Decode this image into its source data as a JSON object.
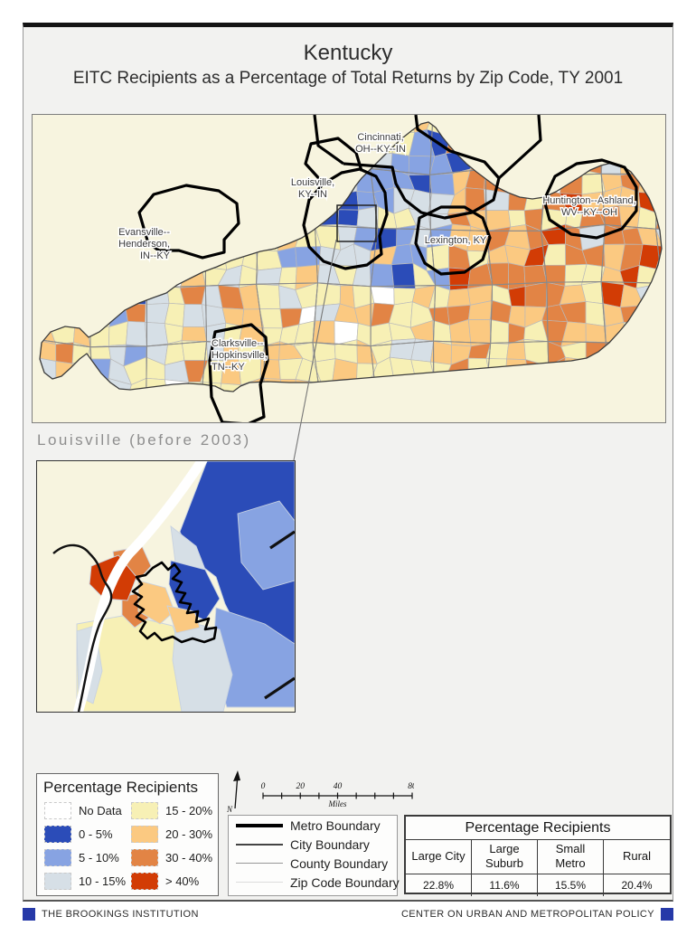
{
  "page": {
    "title": "Kentucky",
    "subtitle": "EITC Recipients as a Percentage of Total Returns by Zip Code, TY 2001"
  },
  "map": {
    "labels": [
      {
        "id": "cincinnati",
        "lines": [
          "Cincinnati,",
          "OH--KY--IN"
        ]
      },
      {
        "id": "louisville",
        "lines": [
          "Louisville,",
          "KY--IN"
        ]
      },
      {
        "id": "evansville",
        "lines": [
          "Evansville--",
          "Henderson,",
          "IN--KY"
        ]
      },
      {
        "id": "lexington",
        "lines": [
          "Lexington, KY"
        ]
      },
      {
        "id": "huntington",
        "lines": [
          "Huntington--Ashland,",
          "WV--KY--OH"
        ]
      },
      {
        "id": "clarksville",
        "lines": [
          "Clarksville--",
          "Hopkinsville,",
          "TN--KY"
        ]
      }
    ]
  },
  "inset": {
    "title": "Louisville (before 2003)"
  },
  "legend": {
    "title": "Percentage Recipients",
    "classes": [
      {
        "key": "nodata",
        "label": "No Data",
        "color": "#ffffff"
      },
      {
        "key": "db",
        "label": "0 - 5%",
        "color": "#2b4cb8"
      },
      {
        "key": "mb",
        "label": "5 - 10%",
        "color": "#87a3e2"
      },
      {
        "key": "lb",
        "label": "10 - 15%",
        "color": "#d6dfe6"
      },
      {
        "key": "py",
        "label": "15 - 20%",
        "color": "#f7f0b5"
      },
      {
        "key": "lo",
        "label": "20 - 30%",
        "color": "#fbc981"
      },
      {
        "key": "mo",
        "label": "30 - 40%",
        "color": "#e28445"
      },
      {
        "key": "rd",
        "label": "> 40%",
        "color": "#d23c05"
      }
    ]
  },
  "scalebar": {
    "ticks": [
      "0",
      "20",
      "40",
      "80"
    ],
    "unit": "Miles",
    "north": "N"
  },
  "boundaries": [
    {
      "label": "Metro Boundary"
    },
    {
      "label": "City Boundary"
    },
    {
      "label": "County Boundary"
    },
    {
      "label": "Zip Code Boundary"
    }
  ],
  "table": {
    "title": "Percentage Recipients",
    "columns": [
      "Large City",
      "Large Suburb",
      "Small Metro",
      "Rural"
    ],
    "values": [
      "22.8%",
      "11.6%",
      "15.5%",
      "20.4%"
    ]
  },
  "footer": {
    "left": "THE BROOKINGS INSTITUTION",
    "right": "CENTER ON URBAN AND METROPOLITAN POLICY",
    "accent": "#2639a8"
  }
}
